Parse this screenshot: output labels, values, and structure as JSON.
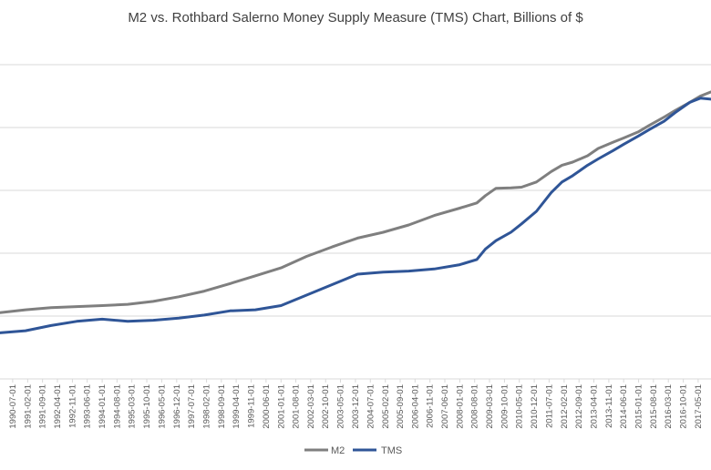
{
  "chart_data": {
    "type": "line",
    "title": "M2 vs. Rothbard Salerno Money Supply Measure (TMS) Chart, Billions of $",
    "xlabel": "",
    "ylabel": "",
    "ylim": [
      0,
      16000
    ],
    "grid": true,
    "legend": "bottom",
    "colors": {
      "M2": "#7f7f7f",
      "TMS": "#2f5597",
      "grid": "#d9d9d9",
      "axis": "#d9d9d9",
      "text": "#595959"
    },
    "x_ticks": [
      "1990-07-01",
      "1991-02-01",
      "1991-09-01",
      "1992-04-01",
      "1992-11-01",
      "1993-06-01",
      "1994-01-01",
      "1994-08-01",
      "1995-03-01",
      "1995-10-01",
      "1996-05-01",
      "1996-12-01",
      "1997-07-01",
      "1998-02-01",
      "1998-09-01",
      "1999-04-01",
      "1999-11-01",
      "2000-06-01",
      "2001-01-01",
      "2001-08-01",
      "2002-03-01",
      "2002-10-01",
      "2003-05-01",
      "2003-12-01",
      "2004-07-01",
      "2005-02-01",
      "2005-09-01",
      "2006-04-01",
      "2006-11-01",
      "2007-06-01",
      "2008-01-01",
      "2008-08-01",
      "2009-03-01",
      "2009-10-01",
      "2010-05-01",
      "2010-12-01",
      "2011-07-01",
      "2012-02-01",
      "2012-09-01",
      "2013-04-01",
      "2013-11-01",
      "2014-06-01",
      "2015-01-01",
      "2015-08-01",
      "2016-03-01",
      "2016-10-01",
      "2017-05-01"
    ],
    "x_start": "1990-01-01",
    "x_end": "2017-11-01",
    "series": [
      {
        "name": "M2",
        "x": [
          "1990-01-01",
          "1991-01-01",
          "1992-01-01",
          "1993-01-01",
          "1994-01-01",
          "1995-01-01",
          "1996-01-01",
          "1997-01-01",
          "1998-01-01",
          "1999-01-01",
          "2000-01-01",
          "2001-01-01",
          "2002-01-01",
          "2003-01-01",
          "2004-01-01",
          "2005-01-01",
          "2006-01-01",
          "2007-01-01",
          "2008-01-01",
          "2008-09-01",
          "2009-01-01",
          "2009-06-01",
          "2010-01-01",
          "2010-06-01",
          "2011-01-01",
          "2011-08-01",
          "2012-01-01",
          "2012-06-01",
          "2013-01-01",
          "2013-06-01",
          "2014-01-01",
          "2014-06-01",
          "2015-01-01",
          "2015-06-01",
          "2016-01-01",
          "2016-06-01",
          "2017-01-01",
          "2017-06-01",
          "2017-11-01"
        ],
        "y": [
          3160,
          3300,
          3400,
          3450,
          3500,
          3560,
          3700,
          3920,
          4190,
          4550,
          4920,
          5300,
          5850,
          6300,
          6720,
          7000,
          7350,
          7800,
          8150,
          8400,
          8750,
          9100,
          9120,
          9150,
          9400,
          9900,
          10200,
          10350,
          10650,
          11000,
          11300,
          11500,
          11800,
          12100,
          12500,
          12800,
          13200,
          13500,
          13700
        ]
      },
      {
        "name": "TMS",
        "x": [
          "1990-01-01",
          "1991-01-01",
          "1992-01-01",
          "1993-01-01",
          "1994-01-01",
          "1995-01-01",
          "1996-01-01",
          "1997-01-01",
          "1998-01-01",
          "1999-01-01",
          "2000-01-01",
          "2001-01-01",
          "2002-01-01",
          "2003-01-01",
          "2004-01-01",
          "2005-01-01",
          "2006-01-01",
          "2007-01-01",
          "2008-01-01",
          "2008-09-01",
          "2009-01-01",
          "2009-06-01",
          "2010-01-01",
          "2010-06-01",
          "2011-01-01",
          "2011-08-01",
          "2012-01-01",
          "2012-06-01",
          "2013-01-01",
          "2013-06-01",
          "2014-01-01",
          "2014-06-01",
          "2015-01-01",
          "2015-06-01",
          "2016-01-01",
          "2016-06-01",
          "2017-01-01",
          "2017-06-01",
          "2017-11-01"
        ],
        "y": [
          2200,
          2300,
          2550,
          2750,
          2850,
          2750,
          2800,
          2900,
          3050,
          3250,
          3300,
          3500,
          4000,
          4500,
          5000,
          5100,
          5150,
          5250,
          5450,
          5700,
          6200,
          6600,
          7000,
          7400,
          8000,
          8900,
          9400,
          9700,
          10200,
          10500,
          10900,
          11200,
          11600,
          11900,
          12300,
          12700,
          13200,
          13400,
          13350
        ]
      }
    ]
  }
}
